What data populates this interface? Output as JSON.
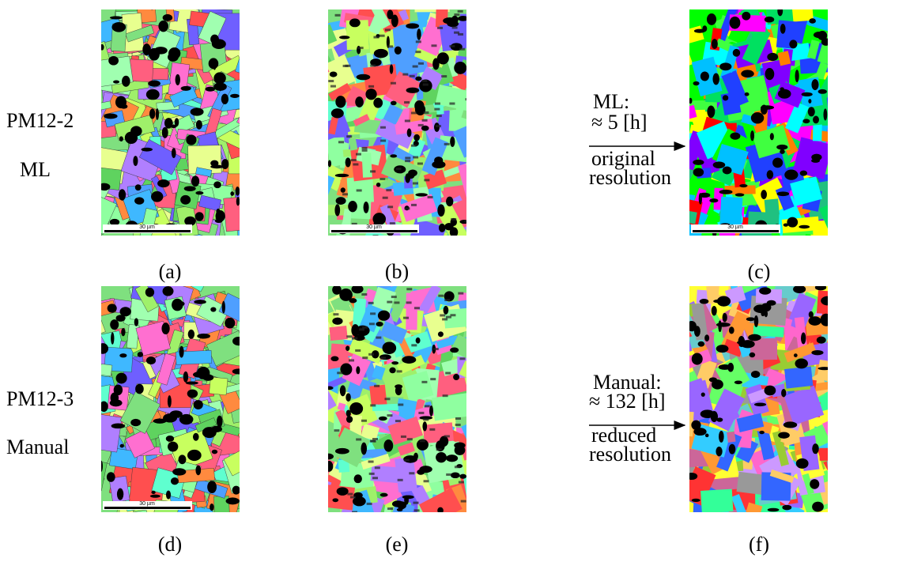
{
  "rows": [
    {
      "labels": [
        "PM12-2",
        "ML"
      ],
      "method": {
        "name": "ML:",
        "time": "≈ 5 [h]",
        "resolution": [
          "original",
          "resolution"
        ]
      },
      "captions": [
        "(a)",
        "(b)",
        "(c)"
      ]
    },
    {
      "labels": [
        "PM12-3",
        "Manual"
      ],
      "method": {
        "name": "Manual:",
        "time": "≈ 132 [h]",
        "resolution": [
          "reduced",
          "resolution"
        ]
      },
      "captions": [
        "(d)",
        "(e)",
        "(f)"
      ]
    }
  ],
  "scale_bar": "30 µm"
}
